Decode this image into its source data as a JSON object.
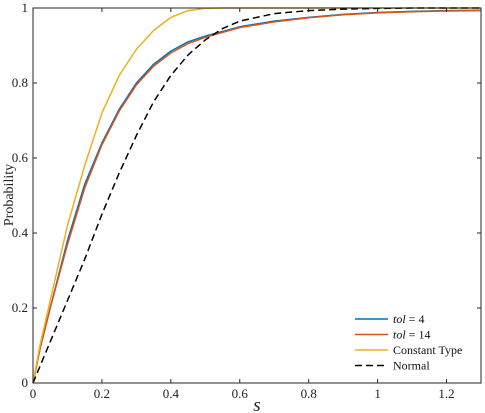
{
  "chart_data": {
    "type": "line",
    "xlabel": "s",
    "ylabel": "Probability",
    "xlim": [
      0,
      1.3
    ],
    "ylim": [
      0,
      1
    ],
    "x_ticks": [
      "0",
      "0.2",
      "0.4",
      "0.6",
      "0.8",
      "1",
      "1.2"
    ],
    "y_ticks": [
      "0",
      "0.2",
      "0.4",
      "0.6",
      "0.8",
      "1"
    ],
    "grid": false,
    "legend_position": "bottom-right",
    "series": [
      {
        "name": "tol = 4",
        "name_italic": "tol",
        "name_rest": " = 4",
        "color": "#0072BD",
        "dash": "solid",
        "x": [
          0,
          0.02,
          0.05,
          0.1,
          0.15,
          0.2,
          0.25,
          0.3,
          0.35,
          0.4,
          0.45,
          0.5,
          0.6,
          0.7,
          0.8,
          0.9,
          1.0,
          1.1,
          1.2,
          1.3
        ],
        "y": [
          0,
          0.09,
          0.2,
          0.38,
          0.53,
          0.64,
          0.73,
          0.8,
          0.85,
          0.885,
          0.91,
          0.925,
          0.95,
          0.965,
          0.975,
          0.983,
          0.988,
          0.991,
          0.993,
          0.994
        ]
      },
      {
        "name": "tol = 14",
        "name_italic": "tol",
        "name_rest": " = 14",
        "color": "#D95319",
        "dash": "solid",
        "x": [
          0,
          0.02,
          0.05,
          0.1,
          0.15,
          0.2,
          0.25,
          0.3,
          0.35,
          0.4,
          0.45,
          0.5,
          0.6,
          0.7,
          0.8,
          0.9,
          1.0,
          1.1,
          1.2,
          1.3
        ],
        "y": [
          0,
          0.09,
          0.2,
          0.37,
          0.52,
          0.635,
          0.725,
          0.795,
          0.845,
          0.88,
          0.905,
          0.922,
          0.948,
          0.963,
          0.974,
          0.982,
          0.987,
          0.99,
          0.992,
          0.993
        ]
      },
      {
        "name": "Constant Type",
        "color": "#EDB120",
        "dash": "solid",
        "x": [
          0,
          0.02,
          0.05,
          0.1,
          0.15,
          0.2,
          0.25,
          0.3,
          0.35,
          0.4,
          0.45,
          0.5,
          0.55,
          0.6,
          0.8,
          1.0,
          1.2,
          1.3
        ],
        "y": [
          0,
          0.1,
          0.22,
          0.42,
          0.58,
          0.72,
          0.82,
          0.89,
          0.94,
          0.975,
          0.993,
          0.999,
          1.0,
          1.0,
          1.0,
          1.0,
          1.0,
          1.0
        ]
      },
      {
        "name": "Normal",
        "color": "#000000",
        "dash": "dashed",
        "x": [
          0,
          0.05,
          0.1,
          0.15,
          0.2,
          0.25,
          0.3,
          0.35,
          0.4,
          0.45,
          0.5,
          0.55,
          0.6,
          0.7,
          0.8,
          0.9,
          1.0,
          1.1,
          1.2,
          1.3
        ],
        "y": [
          0,
          0.11,
          0.22,
          0.33,
          0.45,
          0.56,
          0.66,
          0.75,
          0.82,
          0.875,
          0.915,
          0.945,
          0.965,
          0.985,
          0.993,
          0.997,
          0.999,
          1.0,
          1.0,
          1.0
        ]
      }
    ]
  }
}
